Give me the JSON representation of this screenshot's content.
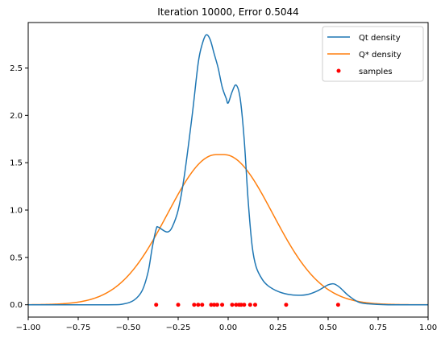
{
  "chart_data": {
    "type": "line",
    "title": "Iteration 10000, Error 0.5044",
    "xlabel": "",
    "ylabel": "",
    "xlim": [
      -1.0,
      1.0
    ],
    "ylim": [
      -0.13,
      2.98
    ],
    "x_ticks": [
      -1.0,
      -0.75,
      -0.5,
      -0.25,
      0.0,
      0.25,
      0.5,
      0.75,
      1.0
    ],
    "x_tick_labels": [
      "−1.00",
      "−0.75",
      "−0.50",
      "−0.25",
      "0.00",
      "0.25",
      "0.50",
      "0.75",
      "1.00"
    ],
    "y_ticks": [
      0.0,
      0.5,
      1.0,
      1.5,
      2.0,
      2.5
    ],
    "y_tick_labels": [
      "0.0",
      "0.5",
      "1.0",
      "1.5",
      "2.0",
      "2.5"
    ],
    "grid": false,
    "legend_position": "top-right",
    "series": [
      {
        "name": "Qt density",
        "kind": "line",
        "color": "#1f77b4",
        "x": [
          -1.0,
          -0.6,
          -0.52,
          -0.47,
          -0.43,
          -0.4,
          -0.38,
          -0.36,
          -0.35,
          -0.32,
          -0.3,
          -0.28,
          -0.25,
          -0.22,
          -0.18,
          -0.15,
          -0.13,
          -0.11,
          -0.09,
          -0.07,
          -0.05,
          -0.03,
          -0.01,
          0.0,
          0.02,
          0.04,
          0.06,
          0.08,
          0.1,
          0.12,
          0.14,
          0.17,
          0.2,
          0.25,
          0.3,
          0.35,
          0.4,
          0.45,
          0.5,
          0.53,
          0.56,
          0.6,
          0.65,
          0.7,
          0.8,
          1.0
        ],
        "y": [
          0.0,
          0.0,
          0.01,
          0.05,
          0.15,
          0.35,
          0.6,
          0.8,
          0.82,
          0.78,
          0.77,
          0.82,
          1.0,
          1.35,
          2.0,
          2.55,
          2.75,
          2.85,
          2.8,
          2.65,
          2.5,
          2.3,
          2.18,
          2.13,
          2.25,
          2.32,
          2.18,
          1.75,
          1.1,
          0.62,
          0.4,
          0.27,
          0.2,
          0.14,
          0.11,
          0.1,
          0.11,
          0.15,
          0.21,
          0.22,
          0.18,
          0.1,
          0.03,
          0.01,
          0.0,
          0.0
        ]
      },
      {
        "name": "Q* density",
        "kind": "line",
        "color": "#ff7f0e",
        "curve": {
          "form": "gaussian-flat-top",
          "peak": 1.585,
          "center": -0.04,
          "sigma": 0.243,
          "flat_halfwidth": 0.02
        }
      },
      {
        "name": "samples",
        "kind": "scatter",
        "color": "#ff0000",
        "x": [
          -0.36,
          -0.25,
          -0.17,
          -0.15,
          -0.13,
          -0.085,
          -0.07,
          -0.055,
          -0.03,
          0.02,
          0.04,
          0.055,
          0.065,
          0.08,
          0.11,
          0.135,
          0.29,
          0.55
        ],
        "y": [
          0,
          0,
          0,
          0,
          0,
          0,
          0,
          0,
          0,
          0,
          0,
          0,
          0,
          0,
          0,
          0,
          0,
          0
        ]
      }
    ]
  }
}
